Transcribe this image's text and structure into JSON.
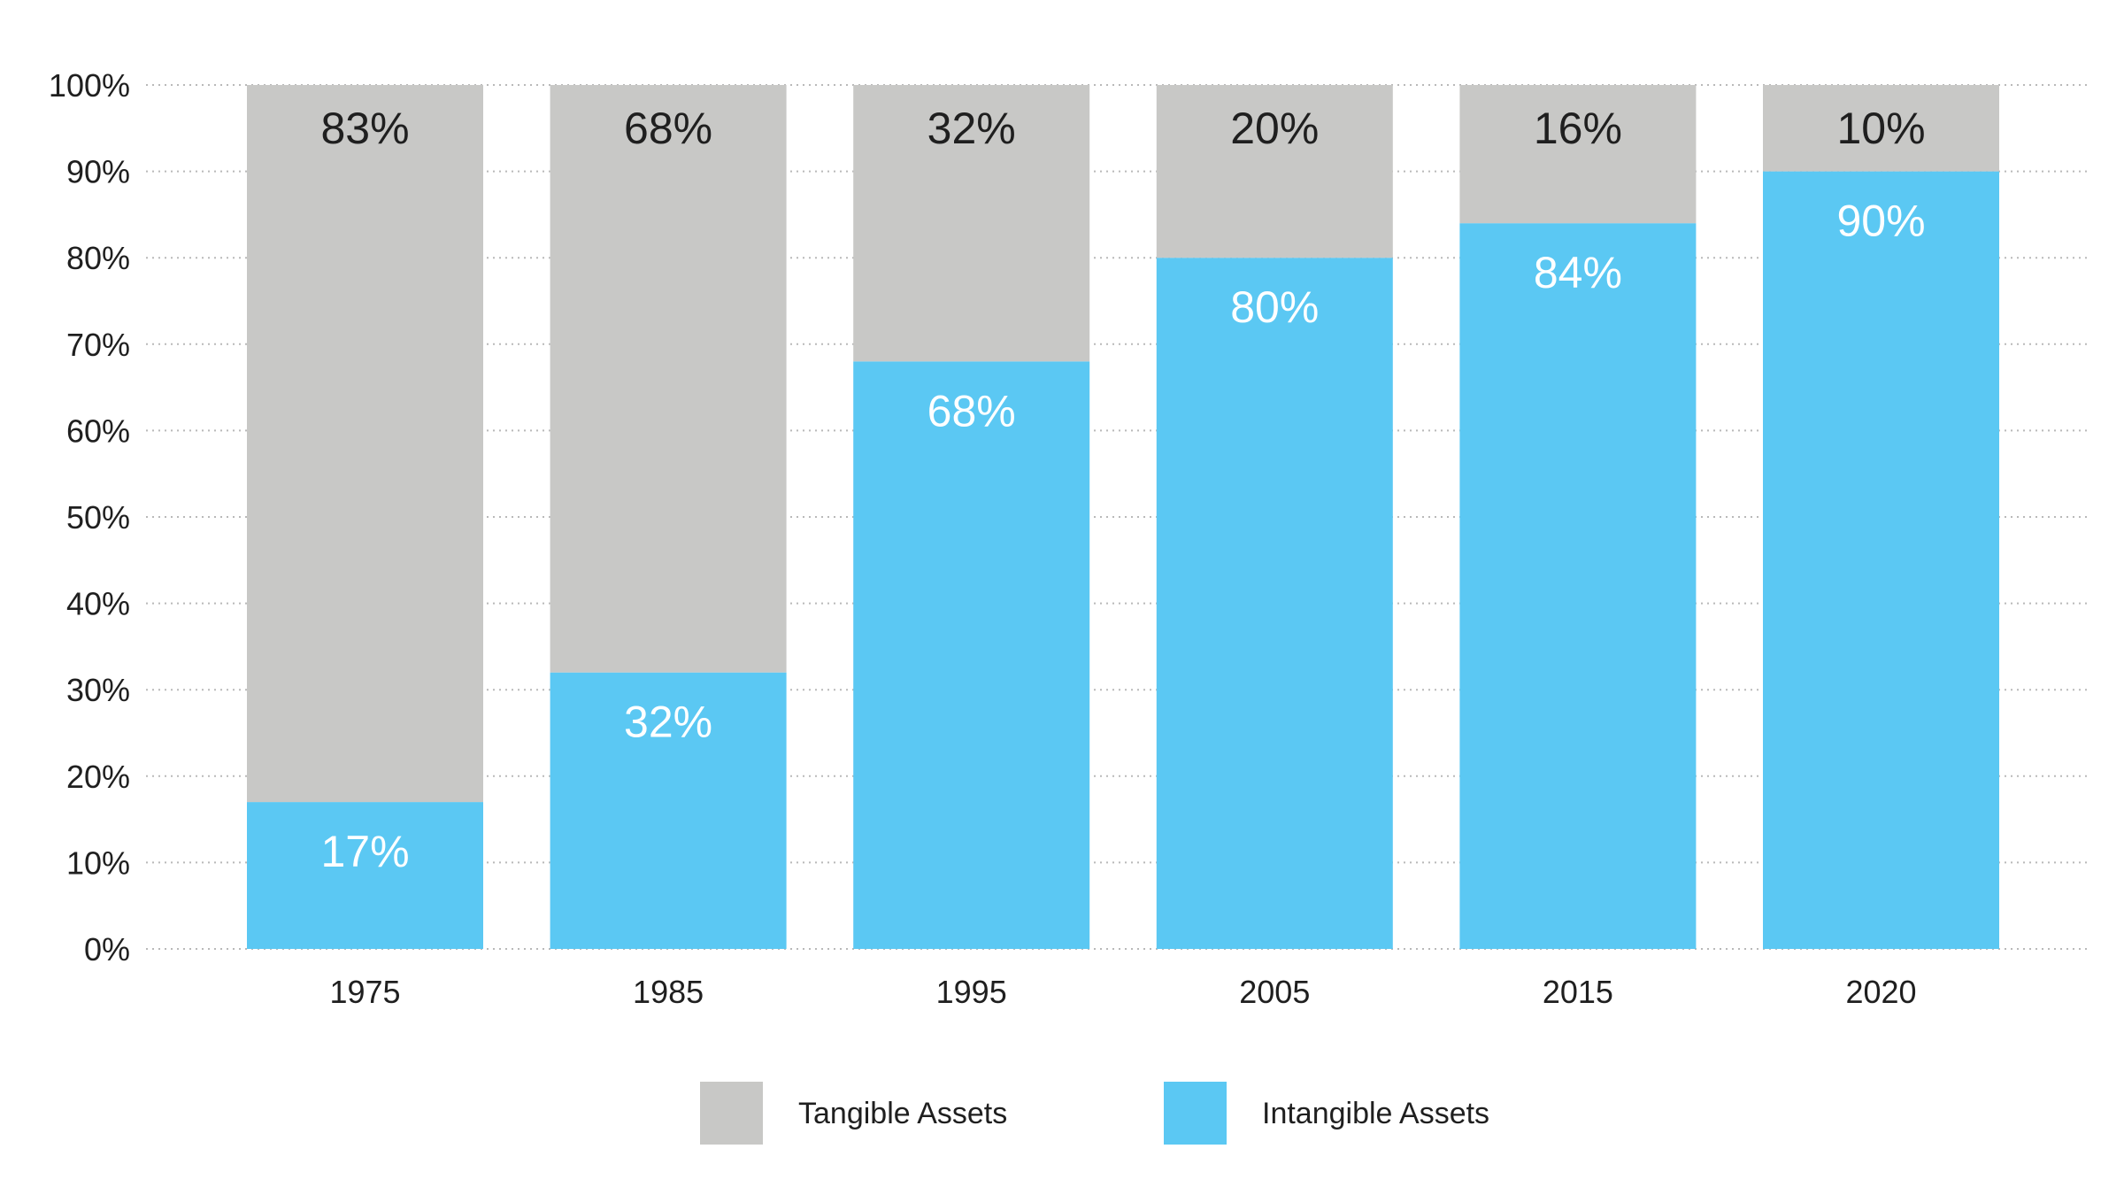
{
  "chart_data": {
    "type": "bar",
    "stacked": true,
    "title": "",
    "xlabel": "",
    "ylabel": "",
    "ylim": [
      0,
      100
    ],
    "categories": [
      "1975",
      "1985",
      "1995",
      "2005",
      "2015",
      "2020"
    ],
    "yticks": [
      "0%",
      "10%",
      "20%",
      "30%",
      "40%",
      "50%",
      "60%",
      "70%",
      "80%",
      "90%",
      "100%"
    ],
    "grid": true,
    "legend_position": "bottom-center",
    "series": [
      {
        "name": "Intangible Assets",
        "color": "#5bc8f3",
        "values": [
          17,
          32,
          68,
          80,
          84,
          90
        ],
        "labels": [
          "17%",
          "32%",
          "68%",
          "80%",
          "84%",
          "90%"
        ]
      },
      {
        "name": "Tangible Assets",
        "color": "#c8c8c6",
        "values": [
          83,
          68,
          32,
          20,
          16,
          10
        ],
        "labels": [
          "83%",
          "68%",
          "32%",
          "20%",
          "16%",
          "10%"
        ]
      }
    ],
    "legend": [
      {
        "label": "Tangible Assets",
        "color": "#c8c8c6"
      },
      {
        "label": "Intangible Assets",
        "color": "#5bc8f3"
      }
    ]
  }
}
